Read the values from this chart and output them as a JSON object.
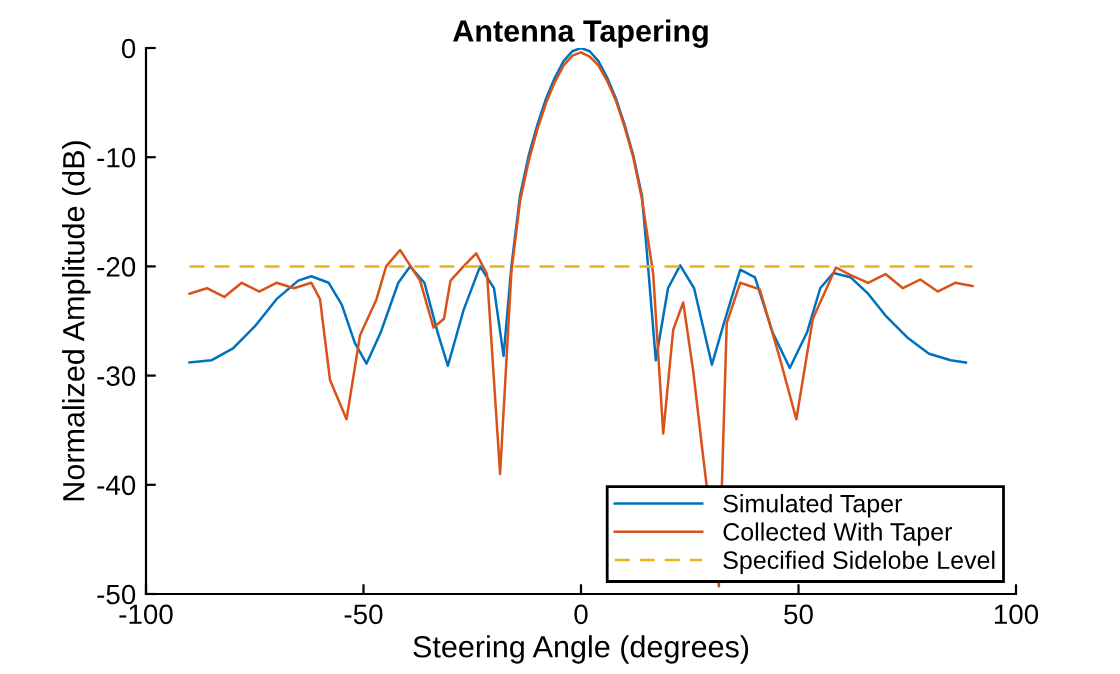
{
  "chart_data": {
    "type": "line",
    "title": "Antenna Tapering",
    "xlabel": "Steering Angle (degrees)",
    "ylabel": "Normalized Amplitude (dB)",
    "xlim": [
      -100,
      100
    ],
    "xticks": [
      -100,
      -50,
      0,
      50,
      100
    ],
    "ylim": [
      -50,
      0
    ],
    "yticks": [
      -50,
      -40,
      -30,
      -20,
      -10,
      0
    ],
    "grid": false,
    "legend": "bottom right",
    "series": [
      {
        "name": "Simulated Taper",
        "color": "#0072bd",
        "x": [
          -90,
          -85,
          -80,
          -75,
          -70,
          -65,
          -62,
          -58,
          -55,
          -52,
          -49.3,
          -46,
          -42,
          -39.3,
          -36,
          -33,
          -30.6,
          -27,
          -23.2,
          -20,
          -17.8,
          -16,
          -14,
          -12,
          -10,
          -8,
          -6,
          -4,
          -2,
          0,
          2,
          4,
          6,
          8,
          10,
          12,
          14,
          15,
          17.2,
          20,
          22.8,
          26,
          30.1,
          33,
          36.6,
          40,
          44,
          48,
          52,
          55,
          58,
          62,
          66,
          70,
          75,
          80,
          85,
          88.5
        ],
        "values": [
          -28.8,
          -28.6,
          -27.5,
          -25.5,
          -23,
          -21.3,
          -20.9,
          -21.5,
          -23.5,
          -27,
          -28.9,
          -26,
          -21.5,
          -20,
          -21.5,
          -26,
          -29.1,
          -24,
          -20,
          -22,
          -28.2,
          -20,
          -13.5,
          -9.8,
          -7,
          -4.6,
          -2.7,
          -1.2,
          -0.3,
          0,
          -0.3,
          -1.2,
          -2.7,
          -4.6,
          -7,
          -9.8,
          -13.5,
          -18,
          -28.6,
          -22,
          -19.9,
          -22,
          -29,
          -25,
          -20.3,
          -21,
          -26,
          -29.3,
          -26,
          -22,
          -20.6,
          -21,
          -22.5,
          -24.5,
          -26.5,
          -28,
          -28.6,
          -28.8
        ]
      },
      {
        "name": "Collected With Taper",
        "color": "#d95319",
        "x": [
          -90,
          -86,
          -82,
          -78,
          -74,
          -70,
          -66,
          -62,
          -60,
          -57.7,
          -53.9,
          -50.8,
          -47,
          -44.8,
          -41.6,
          -37,
          -33.9,
          -31.5,
          -30,
          -27,
          -24.1,
          -21.6,
          -18.6,
          -16,
          -14,
          -12,
          -10,
          -8,
          -6,
          -4,
          -2,
          0,
          2,
          4,
          6,
          8,
          10,
          12,
          14,
          16.6,
          18.9,
          21.2,
          23.5,
          25.8,
          28.1,
          31.7,
          33.5,
          36.6,
          41.1,
          45.7,
          49.5,
          53.3,
          58.6,
          62,
          66,
          70,
          74,
          78,
          82,
          86,
          90
        ],
        "values": [
          -22.5,
          -22,
          -22.8,
          -21.5,
          -22.3,
          -21.5,
          -22,
          -21.5,
          -23,
          -30.4,
          -34,
          -26.3,
          -23,
          -20,
          -18.5,
          -21.3,
          -25.6,
          -24.8,
          -21.3,
          -20,
          -18.8,
          -20.7,
          -39,
          -20.5,
          -14,
          -10.3,
          -7.4,
          -5,
          -3.1,
          -1.6,
          -0.7,
          -0.4,
          -0.8,
          -1.6,
          -3,
          -4.8,
          -7.2,
          -10,
          -13.8,
          -20.7,
          -35.3,
          -25.8,
          -23.3,
          -29.6,
          -37.5,
          -49.3,
          -25.2,
          -21.5,
          -22.1,
          -28.4,
          -34,
          -24.8,
          -20.1,
          -20.8,
          -21.5,
          -20.7,
          -22,
          -21.2,
          -22.3,
          -21.5,
          -21.8
        ]
      },
      {
        "name": "Specified Sidelobe Level",
        "color": "#edb120",
        "line_style": "dashed",
        "x": [
          -90,
          90
        ],
        "values": [
          -20,
          -20
        ]
      }
    ]
  }
}
